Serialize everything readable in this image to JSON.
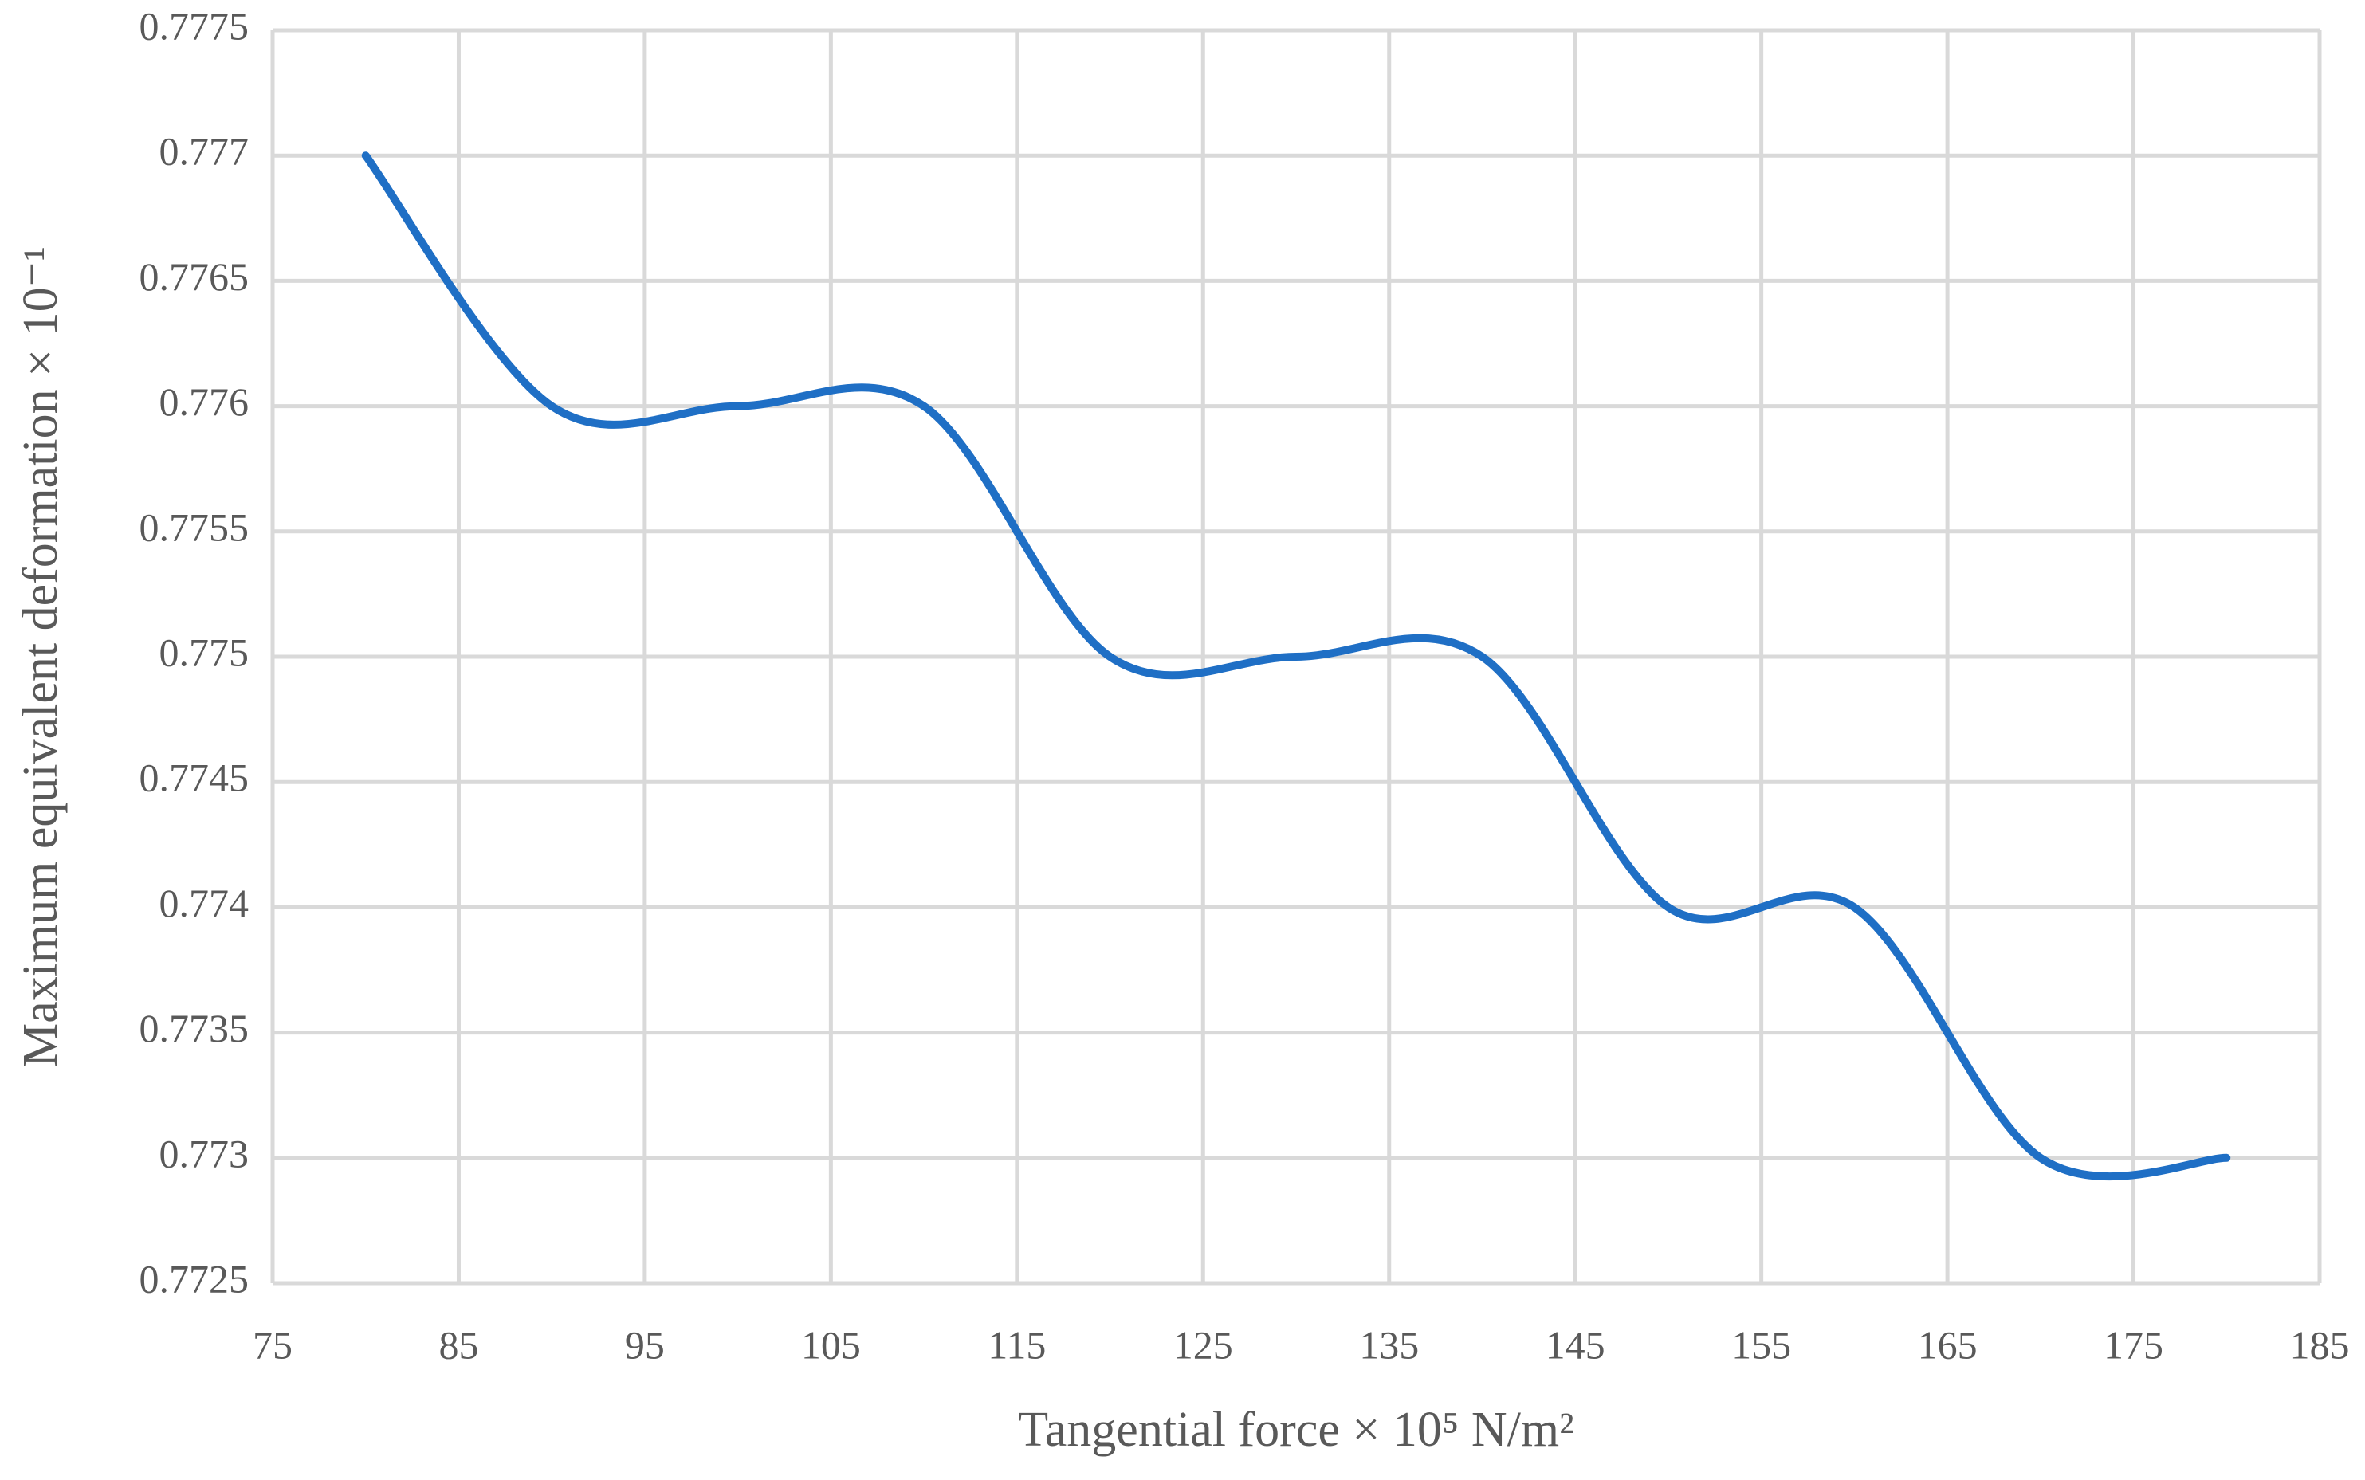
{
  "chart_data": {
    "type": "line",
    "x_label": "Tangential force × 10⁵ N/m²",
    "y_label": "Maximum equivalent deformation × 10⁻¹",
    "x": [
      80,
      90,
      100,
      110,
      120,
      130,
      140,
      150,
      160,
      170,
      180
    ],
    "series": [
      {
        "name": "Maximum equivalent deformation",
        "color": "#1f6fc5",
        "values": [
          0.777,
          0.776,
          0.776,
          0.776,
          0.775,
          0.775,
          0.775,
          0.774,
          0.774,
          0.773,
          0.773
        ]
      }
    ],
    "smooth": true,
    "xlim": [
      75,
      185
    ],
    "xticks": [
      75,
      85,
      95,
      105,
      115,
      125,
      135,
      145,
      155,
      165,
      175,
      185
    ],
    "ylim": [
      0.7725,
      0.7775
    ],
    "yticks": [
      0.7725,
      0.773,
      0.7735,
      0.774,
      0.7745,
      0.775,
      0.7755,
      0.776,
      0.7765,
      0.777,
      0.7775
    ],
    "grid": true
  }
}
